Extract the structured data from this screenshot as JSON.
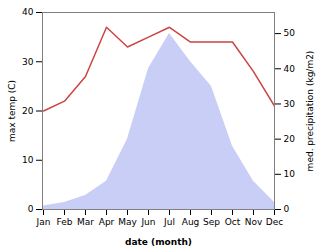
{
  "chart_data": {
    "type": "line",
    "categories": [
      "Jan",
      "Feb",
      "Mar",
      "Apr",
      "May",
      "Jun",
      "Jul",
      "Aug",
      "Sep",
      "Oct",
      "Nov",
      "Dec"
    ],
    "xlabel": "date (month)",
    "ylabel": "max temp (C)",
    "y2label": "med. precipitation (kg/m2)",
    "series": [
      {
        "type": "area",
        "color": "#c8cef5",
        "axis": "y2",
        "values": [
          1,
          2,
          4,
          8,
          20,
          40,
          50,
          42,
          35,
          18,
          8,
          2
        ]
      },
      {
        "type": "line",
        "color": "#cc4444",
        "values": [
          20,
          22,
          27,
          37,
          33,
          35,
          37,
          34,
          34,
          34,
          28,
          21
        ]
      }
    ],
    "ylim": [
      0,
      40
    ],
    "yticks": [
      0,
      10,
      20,
      30,
      40
    ],
    "y2lim": [
      0,
      56
    ],
    "y2ticks": [
      0,
      10,
      20,
      30,
      40,
      50
    ],
    "grid": false
  }
}
